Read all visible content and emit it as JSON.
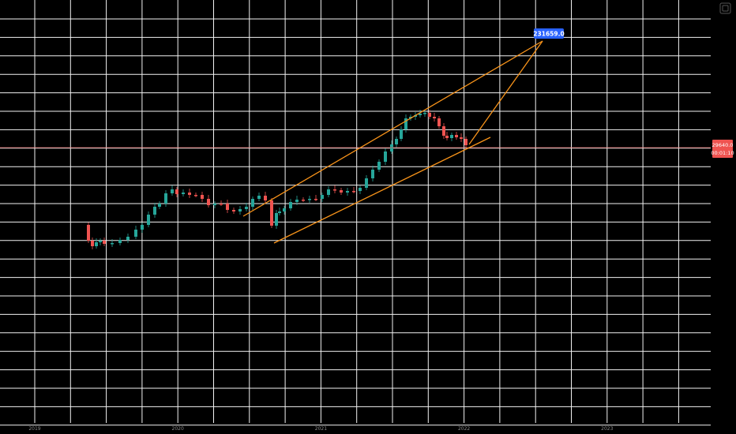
{
  "colors": {
    "background": "#000000",
    "grid": "#f2f2f2",
    "up": "#26a69a",
    "down": "#ef5350",
    "trendline": "#f7931a",
    "target_badge": "#2962ff",
    "price_badge": "#ef5350",
    "price_line": "#ef5350"
  },
  "icons": {
    "top_right": "settings-square-icon"
  },
  "chart_data": {
    "type": "candlestick",
    "title": "",
    "grid": true,
    "y_axis_position": "right",
    "y_ticks": [
      "",
      "",
      "",
      "",
      "",
      "",
      "",
      "",
      "",
      "",
      "",
      "",
      "",
      "",
      "",
      "",
      "",
      "",
      "",
      "",
      "",
      "",
      ""
    ],
    "x_ticks": [
      "2019",
      "",
      "",
      "",
      "2020",
      "",
      "",
      "",
      "2021",
      "",
      "",
      "",
      "2022",
      "",
      "",
      "",
      "2023",
      "",
      ""
    ],
    "target_label": "231659.0",
    "last_price_label": "29640.0",
    "last_price_sublabel": "00:01:10",
    "candles": [
      [
        0.0,
        0.0,
        0.0,
        0.0
      ]
    ]
  }
}
